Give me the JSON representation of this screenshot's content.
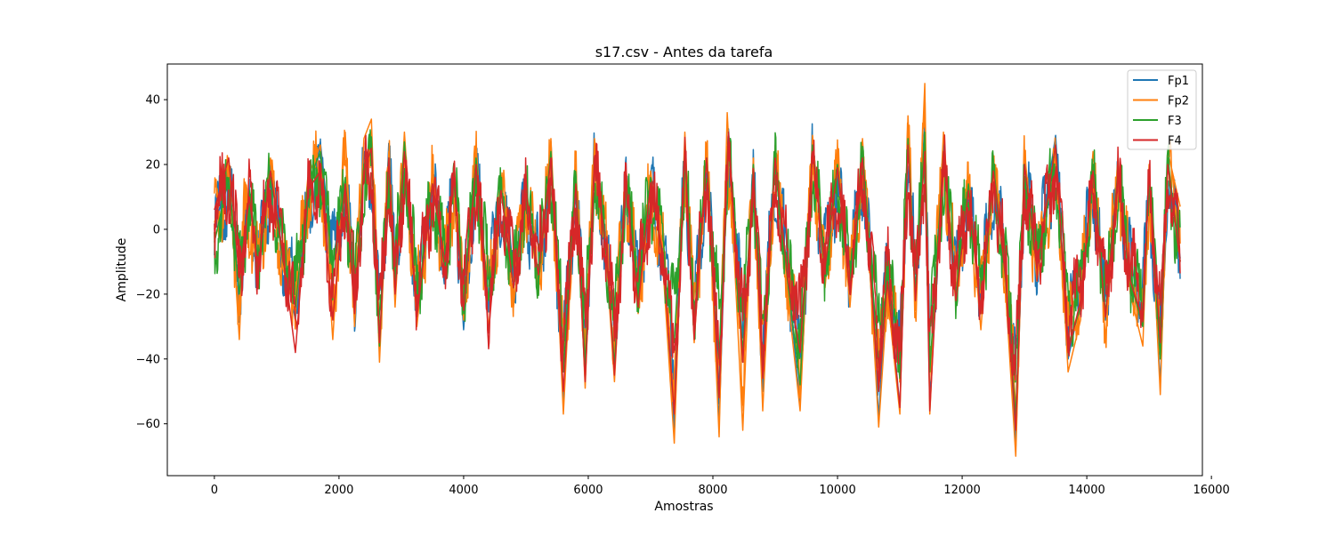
{
  "chart_data": {
    "type": "line",
    "title": "s17.csv - Antes da tarefa",
    "xlabel": "Amostras",
    "ylabel": "Amplitude",
    "xlim": [
      -755,
      15855
    ],
    "ylim": [
      -76,
      51
    ],
    "xticks": [
      0,
      2000,
      4000,
      6000,
      8000,
      10000,
      12000,
      14000,
      16000
    ],
    "xtick_labels": [
      "0",
      "2000",
      "4000",
      "6000",
      "8000",
      "10000",
      "12000",
      "14000",
      "16000"
    ],
    "yticks": [
      -60,
      -40,
      -20,
      0,
      20,
      40
    ],
    "ytick_labels": [
      "−60",
      "−40",
      "−20",
      "0",
      "20",
      "40"
    ],
    "grid": false,
    "legend_position": "top-right",
    "n_samples": 15500,
    "series": [
      {
        "name": "Fp1",
        "color": "#1f77b4",
        "x": [
          0,
          230,
          400,
          560,
          700,
          900,
          1100,
          1300,
          1500,
          1700,
          1900,
          2100,
          2250,
          2400,
          2520,
          2650,
          2800,
          2900,
          3050,
          3250,
          3500,
          3700,
          3850,
          4000,
          4200,
          4400,
          4600,
          4800,
          5000,
          5200,
          5400,
          5600,
          5800,
          5950,
          6100,
          6300,
          6420,
          6600,
          6800,
          7000,
          7200,
          7380,
          7550,
          7700,
          7900,
          8100,
          8250,
          8480,
          8650,
          8800,
          9000,
          9200,
          9400,
          9600,
          9800,
          10000,
          10200,
          10400,
          10660,
          10800,
          11000,
          11130,
          11250,
          11400,
          11480,
          11700,
          11900,
          12100,
          12300,
          12500,
          12700,
          12860,
          13000,
          13200,
          13500,
          13700,
          13900,
          14100,
          14300,
          14500,
          14700,
          14900,
          15000,
          15180,
          15300,
          15500
        ],
        "y": [
          0,
          18,
          -22,
          10,
          -12,
          20,
          -8,
          -28,
          12,
          27,
          -10,
          14,
          -24,
          22,
          26,
          -38,
          25,
          -15,
          18,
          -27,
          14,
          -10,
          16,
          -31,
          20,
          -22,
          12,
          -18,
          10,
          -14,
          22,
          -53,
          14,
          -47,
          25,
          -9,
          -44,
          17,
          -22,
          15,
          -8,
          -63,
          26,
          -33,
          24,
          -60,
          31,
          -41,
          19,
          -50,
          24,
          -15,
          -54,
          28,
          -12,
          20,
          -18,
          25,
          -58,
          -13,
          -55,
          30,
          -19,
          33,
          -53,
          26,
          -20,
          12,
          -25,
          18,
          -14,
          -67,
          20,
          -10,
          29,
          -40,
          -22,
          20,
          -28,
          18,
          -15,
          -30,
          17,
          -48,
          20,
          -9
        ]
      },
      {
        "name": "Fp2",
        "color": "#ff7f0e",
        "x": [
          0,
          230,
          400,
          500,
          700,
          900,
          1100,
          1300,
          1500,
          1700,
          1900,
          2100,
          2250,
          2400,
          2520,
          2650,
          2800,
          2900,
          3050,
          3250,
          3500,
          3700,
          3850,
          4000,
          4200,
          4400,
          4600,
          4800,
          5000,
          5200,
          5400,
          5600,
          5800,
          5950,
          6100,
          6300,
          6420,
          6600,
          6800,
          7000,
          7200,
          7380,
          7550,
          7700,
          7900,
          8100,
          8230,
          8480,
          8650,
          8800,
          9000,
          9200,
          9400,
          9600,
          9800,
          10000,
          10200,
          10400,
          10660,
          10800,
          11000,
          11130,
          11250,
          11400,
          11480,
          11700,
          11900,
          12100,
          12300,
          12500,
          12700,
          12860,
          13000,
          13200,
          13500,
          13700,
          13900,
          14100,
          14300,
          14500,
          14700,
          14900,
          15000,
          15180,
          15300,
          15500
        ],
        "y": [
          2,
          20,
          -34,
          14,
          -14,
          22,
          -12,
          -26,
          16,
          26,
          -34,
          30,
          -30,
          28,
          34,
          -41,
          24,
          -24,
          30,
          -30,
          18,
          -14,
          20,
          -28,
          26,
          -31,
          16,
          -24,
          14,
          -20,
          28,
          -57,
          20,
          -49,
          28,
          -12,
          -47,
          20,
          -26,
          18,
          -12,
          -66,
          30,
          -35,
          26,
          -64,
          36,
          -62,
          22,
          -56,
          26,
          -20,
          -56,
          29,
          -18,
          24,
          -24,
          28,
          -61,
          -20,
          -57,
          35,
          -25,
          45,
          -57,
          30,
          -24,
          16,
          -31,
          22,
          -20,
          -70,
          24,
          -16,
          25,
          -44,
          -28,
          24,
          -34,
          22,
          -20,
          -36,
          20,
          -51,
          24,
          7
        ]
      },
      {
        "name": "F3",
        "color": "#2ca02c",
        "x": [
          0,
          230,
          400,
          560,
          700,
          900,
          1100,
          1300,
          1500,
          1700,
          1900,
          2100,
          2250,
          2400,
          2520,
          2650,
          2800,
          2900,
          3050,
          3250,
          3500,
          3700,
          3850,
          4000,
          4200,
          4400,
          4600,
          4800,
          5000,
          5200,
          5400,
          5600,
          5800,
          5950,
          6100,
          6300,
          6420,
          6600,
          6800,
          7000,
          7200,
          7380,
          7550,
          7700,
          7900,
          8100,
          8250,
          8480,
          8650,
          8800,
          9000,
          9200,
          9400,
          9600,
          9800,
          10000,
          10200,
          10400,
          10660,
          10800,
          11000,
          11130,
          11250,
          11400,
          11480,
          11700,
          11900,
          12100,
          12300,
          12500,
          12700,
          12860,
          13000,
          13200,
          13500,
          13700,
          13900,
          14100,
          14300,
          14500,
          14700,
          14900,
          15000,
          15180,
          15300,
          15500
        ],
        "y": [
          -4,
          16,
          -20,
          12,
          -10,
          18,
          -10,
          -24,
          14,
          24,
          -12,
          16,
          -22,
          20,
          24,
          -36,
          22,
          -16,
          27,
          -24,
          14,
          -12,
          17,
          -26,
          22,
          -22,
          13,
          -18,
          12,
          -16,
          24,
          -44,
          16,
          -42,
          22,
          -10,
          -42,
          18,
          -20,
          16,
          -10,
          -35,
          24,
          -30,
          22,
          -40,
          30,
          -38,
          20,
          -44,
          22,
          -16,
          -48,
          26,
          -14,
          20,
          -20,
          24,
          -42,
          -14,
          -46,
          28,
          -20,
          30,
          -44,
          24,
          -20,
          14,
          -26,
          20,
          -16,
          -58,
          20,
          -12,
          26,
          -36,
          -24,
          20,
          -26,
          18,
          -16,
          -30,
          18,
          -40,
          22,
          -10
        ]
      },
      {
        "name": "F4",
        "color": "#d62728",
        "x": [
          0,
          230,
          400,
          560,
          700,
          900,
          1100,
          1300,
          1500,
          1700,
          1900,
          2100,
          2250,
          2400,
          2520,
          2650,
          2800,
          2900,
          3050,
          3250,
          3500,
          3700,
          3850,
          4000,
          4200,
          4400,
          4600,
          4800,
          5000,
          5200,
          5400,
          5600,
          5800,
          5950,
          6100,
          6300,
          6420,
          6600,
          6800,
          7000,
          7200,
          7380,
          7550,
          7700,
          7900,
          8100,
          8250,
          8480,
          8650,
          8800,
          9000,
          9200,
          9400,
          9600,
          9800,
          10000,
          10200,
          10400,
          10660,
          10800,
          11000,
          11130,
          11250,
          11400,
          11480,
          11700,
          11900,
          12100,
          12300,
          12500,
          12700,
          12860,
          13000,
          13200,
          13500,
          13700,
          13900,
          14100,
          14300,
          14500,
          14700,
          14900,
          15000,
          15180,
          15300,
          15500
        ],
        "y": [
          6,
          22,
          -15,
          10,
          -12,
          18,
          -8,
          -38,
          12,
          18,
          -28,
          14,
          -26,
          18,
          25,
          -35,
          22,
          -20,
          24,
          -27,
          14,
          -10,
          16,
          -25,
          20,
          -32,
          12,
          -18,
          11,
          -14,
          22,
          -50,
          14,
          -47,
          22,
          -8,
          -45,
          15,
          -24,
          14,
          -8,
          -57,
          24,
          -34,
          22,
          -52,
          30,
          -41,
          18,
          -46,
          22,
          -15,
          -38,
          24,
          -12,
          19,
          -20,
          22,
          -50,
          -16,
          -55,
          26,
          -22,
          24,
          -56,
          24,
          -22,
          12,
          -26,
          18,
          -15,
          -62,
          20,
          -12,
          26,
          -38,
          -22,
          18,
          -27,
          17,
          -16,
          -28,
          18,
          -35,
          20,
          -10
        ]
      }
    ]
  }
}
